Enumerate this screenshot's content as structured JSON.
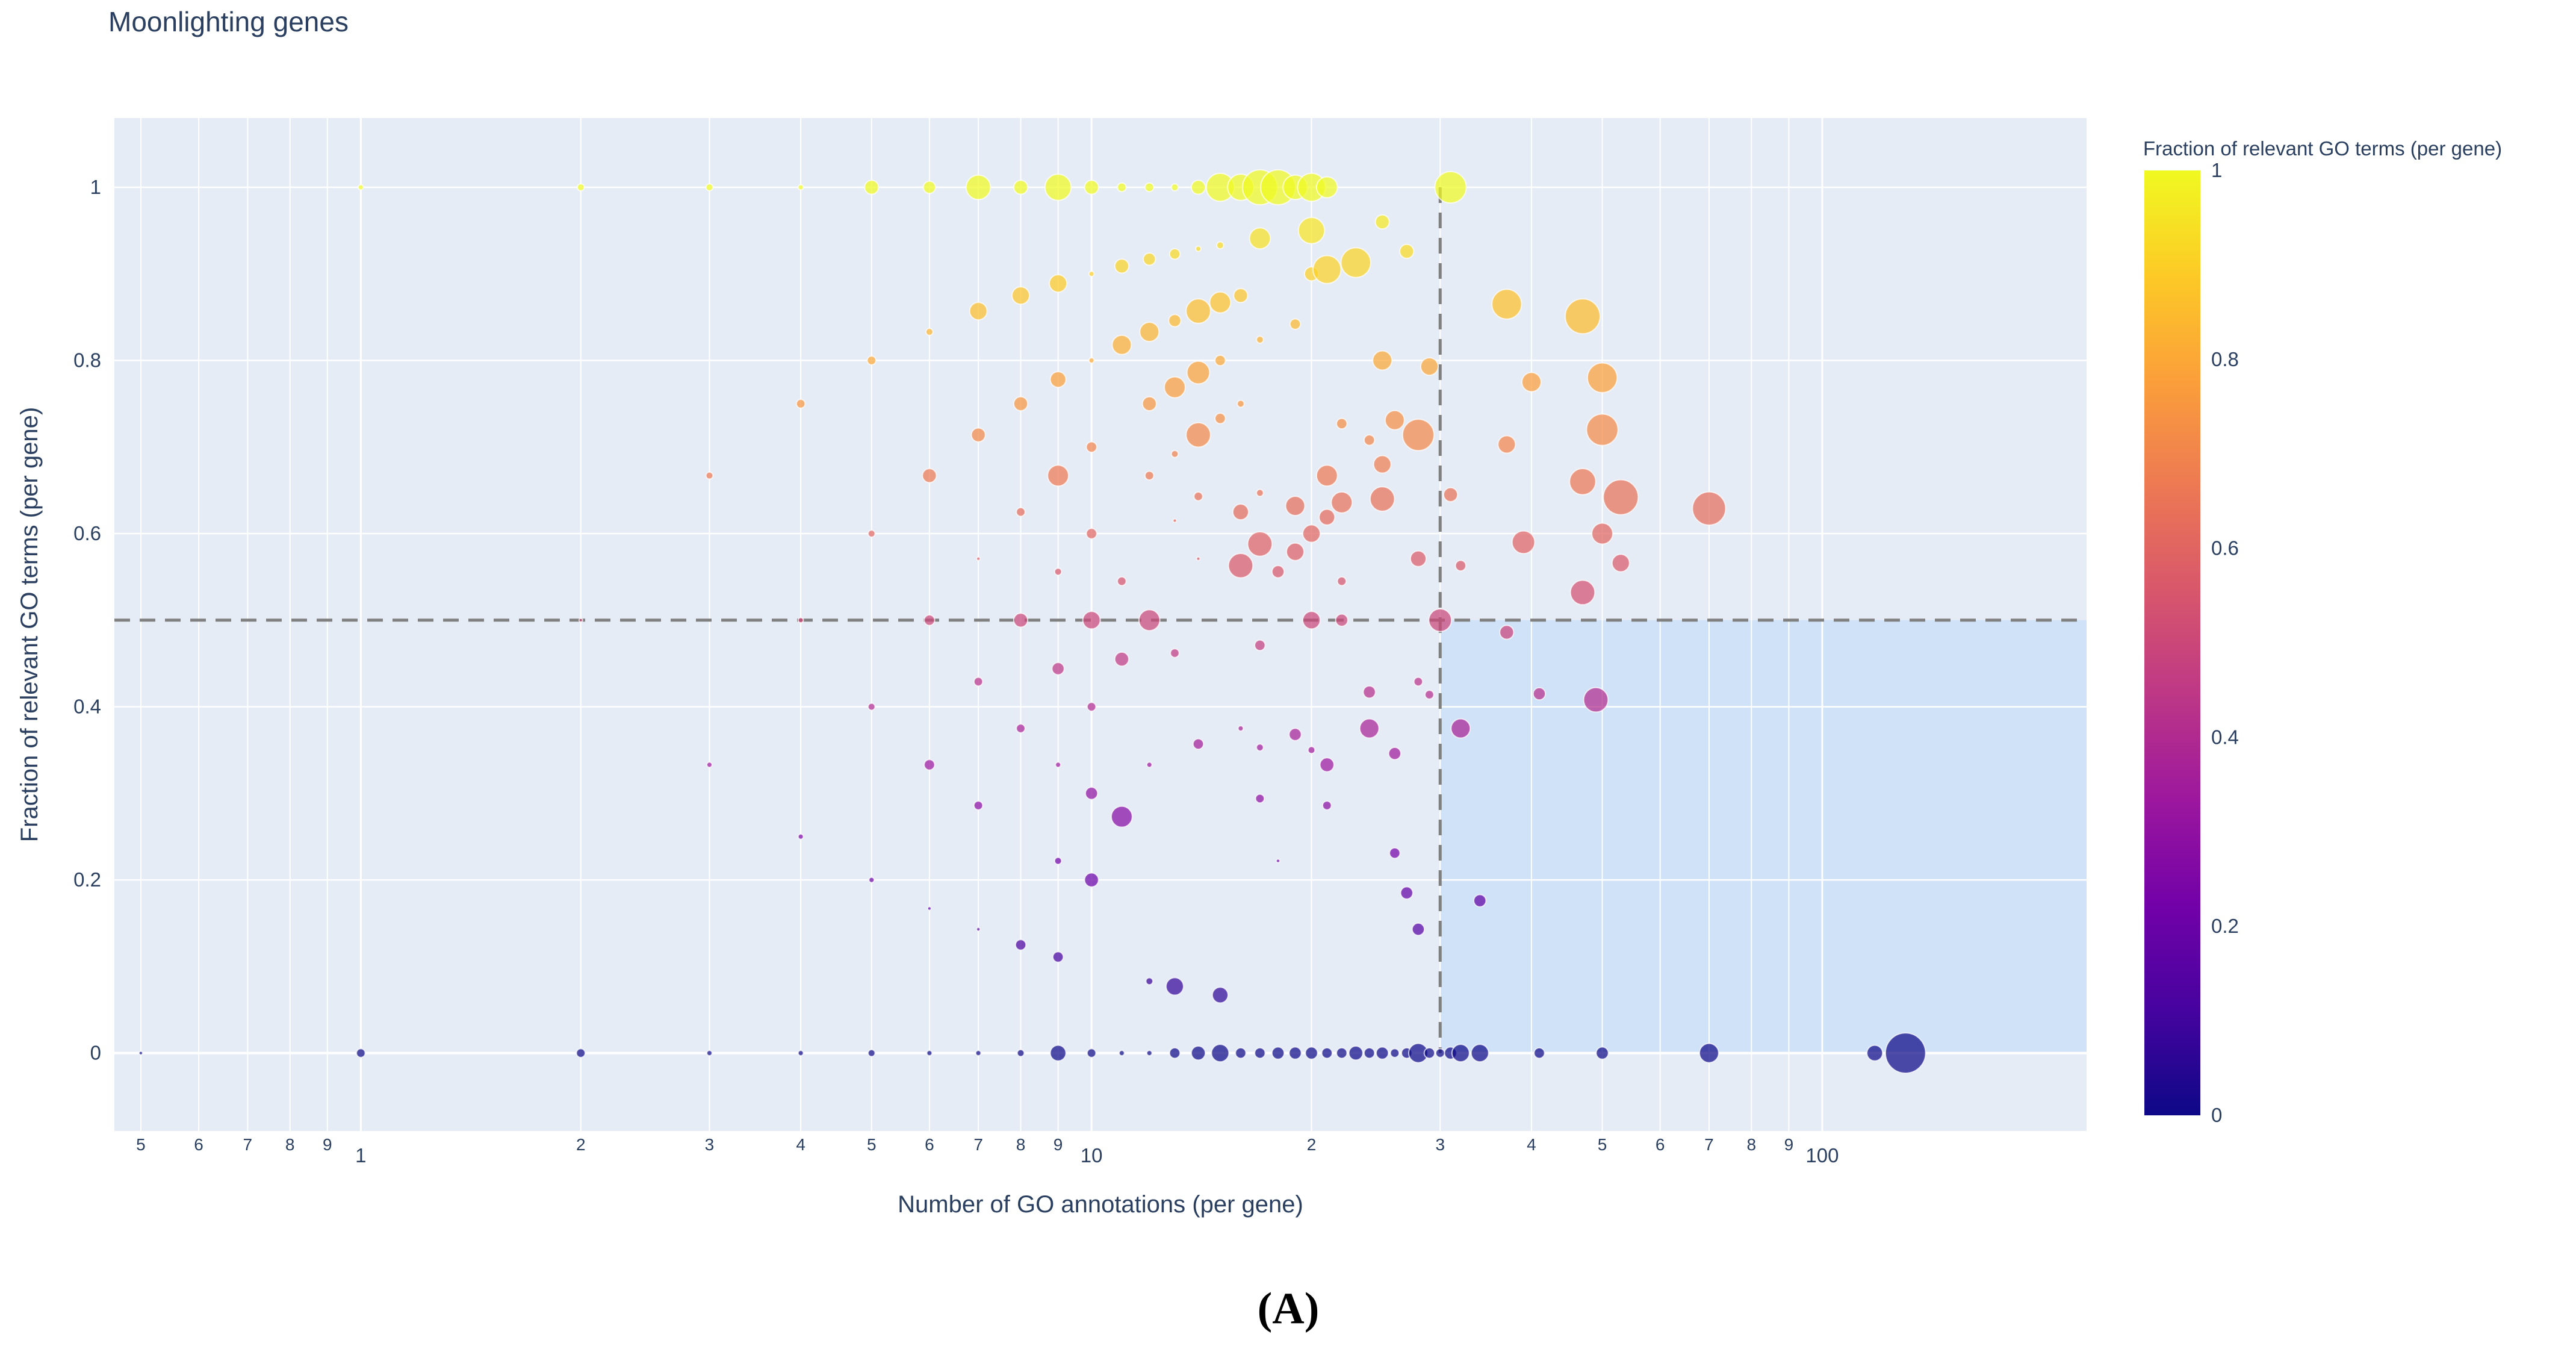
{
  "chart_data": {
    "type": "scatter",
    "title": "Moonlighting genes",
    "xlabel": "Number of GO annotations (per gene)",
    "ylabel": "Fraction of relevant GO terms (per gene)",
    "x_scale": "log",
    "xlim": [
      0.46,
      230
    ],
    "ylim": [
      -0.09,
      1.08
    ],
    "x_major_ticks": [
      {
        "value": 1,
        "label": "1"
      },
      {
        "value": 10,
        "label": "10"
      },
      {
        "value": 100,
        "label": "100"
      }
    ],
    "x_minor_ticks": [
      {
        "value": 0.5,
        "label": "5"
      },
      {
        "value": 0.6,
        "label": "6"
      },
      {
        "value": 0.7,
        "label": "7"
      },
      {
        "value": 0.8,
        "label": "8"
      },
      {
        "value": 0.9,
        "label": "9"
      },
      {
        "value": 2,
        "label": "2"
      },
      {
        "value": 3,
        "label": "3"
      },
      {
        "value": 4,
        "label": "4"
      },
      {
        "value": 5,
        "label": "5"
      },
      {
        "value": 6,
        "label": "6"
      },
      {
        "value": 7,
        "label": "7"
      },
      {
        "value": 8,
        "label": "8"
      },
      {
        "value": 9,
        "label": "9"
      },
      {
        "value": 20,
        "label": "2"
      },
      {
        "value": 30,
        "label": "3"
      },
      {
        "value": 40,
        "label": "4"
      },
      {
        "value": 50,
        "label": "5"
      },
      {
        "value": 60,
        "label": "6"
      },
      {
        "value": 70,
        "label": "7"
      },
      {
        "value": 80,
        "label": "8"
      },
      {
        "value": 90,
        "label": "9"
      }
    ],
    "y_ticks": [
      {
        "value": 0,
        "label": "0"
      },
      {
        "value": 0.2,
        "label": "0.2"
      },
      {
        "value": 0.4,
        "label": "0.4"
      },
      {
        "value": 0.6,
        "label": "0.6"
      },
      {
        "value": 0.8,
        "label": "0.8"
      },
      {
        "value": 1,
        "label": "1"
      }
    ],
    "colorbar": {
      "title": "Fraction of relevant GO terms (per gene)",
      "range": [
        0,
        1
      ],
      "colorscale": [
        "#0d0887",
        "#46039f",
        "#7201a8",
        "#9c179e",
        "#bd3786",
        "#d8576b",
        "#ed7953",
        "#fb9f3a",
        "#fdca26",
        "#f0f921"
      ],
      "ticks": [
        {
          "value": 0,
          "label": "0"
        },
        {
          "value": 0.2,
          "label": "0.2"
        },
        {
          "value": 0.4,
          "label": "0.4"
        },
        {
          "value": 0.6,
          "label": "0.6"
        },
        {
          "value": 0.8,
          "label": "0.8"
        },
        {
          "value": 1,
          "label": "1"
        }
      ]
    },
    "threshold_lines": {
      "x": 30,
      "y": 0.5
    },
    "highlight_region": {
      "x": [
        30,
        230
      ],
      "y": [
        0,
        0.5
      ]
    },
    "points": [
      [
        0.5,
        0,
        2
      ],
      [
        1,
        1,
        3
      ],
      [
        1,
        0,
        5
      ],
      [
        2,
        1,
        4
      ],
      [
        2,
        0,
        5
      ],
      [
        2,
        0.5,
        2
      ],
      [
        3,
        1,
        4
      ],
      [
        3,
        0.667,
        4
      ],
      [
        3,
        0.333,
        3
      ],
      [
        3,
        0,
        3
      ],
      [
        4,
        1,
        3
      ],
      [
        4,
        0.75,
        5
      ],
      [
        4,
        0.5,
        3
      ],
      [
        4,
        0.25,
        3
      ],
      [
        4,
        0,
        3
      ],
      [
        5,
        1,
        8
      ],
      [
        5,
        0.8,
        5
      ],
      [
        5,
        0.6,
        4
      ],
      [
        5,
        0.4,
        4
      ],
      [
        5,
        0.2,
        3
      ],
      [
        5,
        0,
        4
      ],
      [
        6,
        1,
        7
      ],
      [
        6,
        0.833,
        4
      ],
      [
        6,
        0.667,
        8
      ],
      [
        6,
        0.5,
        6
      ],
      [
        6,
        0.333,
        6
      ],
      [
        6,
        0.167,
        2
      ],
      [
        6,
        0,
        3
      ],
      [
        7,
        1,
        14
      ],
      [
        7,
        0.857,
        10
      ],
      [
        7,
        0.714,
        8
      ],
      [
        7,
        0.571,
        2
      ],
      [
        7,
        0.429,
        5
      ],
      [
        7,
        0.286,
        5
      ],
      [
        7,
        0.143,
        2
      ],
      [
        7,
        0,
        3
      ],
      [
        8,
        1,
        8
      ],
      [
        8,
        0.875,
        10
      ],
      [
        8,
        0.75,
        8
      ],
      [
        8,
        0.625,
        5
      ],
      [
        8,
        0.5,
        8
      ],
      [
        8,
        0.375,
        5
      ],
      [
        8,
        0.125,
        6
      ],
      [
        8,
        0,
        4
      ],
      [
        9,
        1,
        15
      ],
      [
        9,
        0.889,
        10
      ],
      [
        9,
        0.778,
        9
      ],
      [
        9,
        0.667,
        12
      ],
      [
        9,
        0.556,
        4
      ],
      [
        9,
        0.444,
        7
      ],
      [
        9,
        0.333,
        3
      ],
      [
        9,
        0.222,
        4
      ],
      [
        9,
        0.111,
        6
      ],
      [
        9,
        0,
        9
      ],
      [
        10,
        1,
        8
      ],
      [
        10,
        0.9,
        3
      ],
      [
        10,
        0.8,
        3
      ],
      [
        10,
        0.7,
        6
      ],
      [
        10,
        0.6,
        6
      ],
      [
        10,
        0.5,
        10
      ],
      [
        10,
        0.4,
        5
      ],
      [
        10,
        0.3,
        7
      ],
      [
        10,
        0.2,
        8
      ],
      [
        10,
        0,
        5
      ],
      [
        11,
        1,
        5
      ],
      [
        11,
        0.909,
        8
      ],
      [
        11,
        0.818,
        11
      ],
      [
        11,
        0.545,
        5
      ],
      [
        11,
        0.455,
        8
      ],
      [
        11,
        0.273,
        12
      ],
      [
        11,
        0,
        3
      ],
      [
        12,
        1,
        5
      ],
      [
        12,
        0.917,
        7
      ],
      [
        12,
        0.833,
        11
      ],
      [
        12,
        0.75,
        8
      ],
      [
        12,
        0.667,
        5
      ],
      [
        12,
        0.5,
        12
      ],
      [
        12,
        0.333,
        3
      ],
      [
        12,
        0.083,
        4
      ],
      [
        12,
        0,
        3
      ],
      [
        13,
        1,
        4
      ],
      [
        13,
        0.923,
        6
      ],
      [
        13,
        0.846,
        7
      ],
      [
        13,
        0.769,
        12
      ],
      [
        13,
        0.692,
        4
      ],
      [
        13,
        0.615,
        2
      ],
      [
        13,
        0.462,
        5
      ],
      [
        13,
        0.077,
        10
      ],
      [
        13,
        0,
        6
      ],
      [
        14,
        1,
        8
      ],
      [
        14,
        0.929,
        3
      ],
      [
        14,
        0.857,
        14
      ],
      [
        14,
        0.786,
        13
      ],
      [
        14,
        0.714,
        14
      ],
      [
        14,
        0.643,
        5
      ],
      [
        14,
        0.571,
        2
      ],
      [
        14,
        0.357,
        6
      ],
      [
        14,
        0,
        8
      ],
      [
        15,
        1,
        16
      ],
      [
        15,
        0.933,
        4
      ],
      [
        15,
        0.867,
        12
      ],
      [
        15,
        0.8,
        6
      ],
      [
        15,
        0.733,
        6
      ],
      [
        15,
        0.067,
        9
      ],
      [
        15,
        0,
        10
      ],
      [
        16,
        1,
        15
      ],
      [
        16,
        0.875,
        8
      ],
      [
        16,
        0.75,
        4
      ],
      [
        16,
        0.625,
        9
      ],
      [
        16,
        0.563,
        14
      ],
      [
        16,
        0.375,
        3
      ],
      [
        16,
        0,
        6
      ],
      [
        17,
        1,
        20
      ],
      [
        17,
        0.941,
        12
      ],
      [
        17,
        0.824,
        4
      ],
      [
        17,
        0.647,
        4
      ],
      [
        17,
        0.588,
        14
      ],
      [
        17,
        0.471,
        6
      ],
      [
        17,
        0.353,
        4
      ],
      [
        17,
        0.294,
        5
      ],
      [
        17,
        0,
        6
      ],
      [
        18,
        1,
        20
      ],
      [
        18,
        0.556,
        7
      ],
      [
        18,
        0.222,
        2
      ],
      [
        18,
        0,
        7
      ],
      [
        19,
        1,
        14
      ],
      [
        19,
        0.842,
        6
      ],
      [
        19,
        0.632,
        11
      ],
      [
        19,
        0.579,
        10
      ],
      [
        19,
        0.368,
        7
      ],
      [
        19,
        0,
        7
      ],
      [
        20,
        1,
        16
      ],
      [
        20,
        0.95,
        15
      ],
      [
        20,
        0.9,
        8
      ],
      [
        20,
        0.6,
        10
      ],
      [
        20,
        0.5,
        10
      ],
      [
        20,
        0.35,
        4
      ],
      [
        20,
        0,
        7
      ],
      [
        21,
        1,
        12
      ],
      [
        21,
        0.905,
        16
      ],
      [
        21,
        0.667,
        12
      ],
      [
        21,
        0.619,
        9
      ],
      [
        21,
        0.333,
        8
      ],
      [
        21,
        0.286,
        5
      ],
      [
        21,
        0,
        6
      ],
      [
        22,
        0.727,
        6
      ],
      [
        22,
        0.636,
        12
      ],
      [
        22,
        0.545,
        5
      ],
      [
        22,
        0.5,
        7
      ],
      [
        22,
        0,
        6
      ],
      [
        23,
        0.913,
        17
      ],
      [
        23,
        0,
        8
      ],
      [
        24,
        0.708,
        6
      ],
      [
        24,
        0.417,
        7
      ],
      [
        24,
        0.375,
        11
      ],
      [
        24,
        0,
        6
      ],
      [
        25,
        0.96,
        8
      ],
      [
        25,
        0.8,
        11
      ],
      [
        25,
        0.68,
        10
      ],
      [
        25,
        0.64,
        14
      ],
      [
        25,
        0,
        7
      ],
      [
        26,
        0.731,
        11
      ],
      [
        26,
        0.346,
        7
      ],
      [
        26,
        0.231,
        6
      ],
      [
        26,
        0,
        5
      ],
      [
        27,
        0.926,
        8
      ],
      [
        27,
        0.185,
        7
      ],
      [
        27,
        0,
        6
      ],
      [
        28,
        0.714,
        18
      ],
      [
        28,
        0.571,
        9
      ],
      [
        28,
        0.429,
        5
      ],
      [
        28,
        0.143,
        7
      ],
      [
        28,
        0,
        11
      ],
      [
        29,
        0.793,
        10
      ],
      [
        29,
        0.414,
        5
      ],
      [
        29,
        0,
        6
      ],
      [
        30,
        0.5,
        13
      ],
      [
        30,
        0,
        5
      ],
      [
        31,
        1,
        18
      ],
      [
        31,
        0.645,
        8
      ],
      [
        31,
        0,
        7
      ],
      [
        32,
        0.563,
        6
      ],
      [
        32,
        0.375,
        11
      ],
      [
        32,
        0,
        10
      ],
      [
        34,
        0.176,
        7
      ],
      [
        34,
        0,
        10
      ],
      [
        37,
        0.865,
        17
      ],
      [
        37,
        0.703,
        10
      ],
      [
        37,
        0.486,
        8
      ],
      [
        39,
        0.59,
        13
      ],
      [
        40,
        0.775,
        11
      ],
      [
        41,
        0.415,
        7
      ],
      [
        41,
        0,
        6
      ],
      [
        47,
        0.851,
        20
      ],
      [
        47,
        0.66,
        15
      ],
      [
        47,
        0.532,
        14
      ],
      [
        49,
        0.408,
        14
      ],
      [
        50,
        0.78,
        17
      ],
      [
        50,
        0.72,
        18
      ],
      [
        50,
        0.6,
        12
      ],
      [
        50,
        0,
        7
      ],
      [
        53,
        0.642,
        20
      ],
      [
        53,
        0.566,
        10
      ],
      [
        70,
        0.629,
        19
      ],
      [
        70,
        0,
        11
      ],
      [
        118,
        0,
        9
      ],
      [
        130,
        0,
        23
      ]
    ]
  },
  "figure": {
    "caption": "(A)",
    "plot_bg": "#e5ecf6",
    "grid_color": "#ffffff",
    "highlight_color": "#cfe2f7",
    "reference_line_color": "#808080",
    "text_color": "#2a3f5f"
  }
}
